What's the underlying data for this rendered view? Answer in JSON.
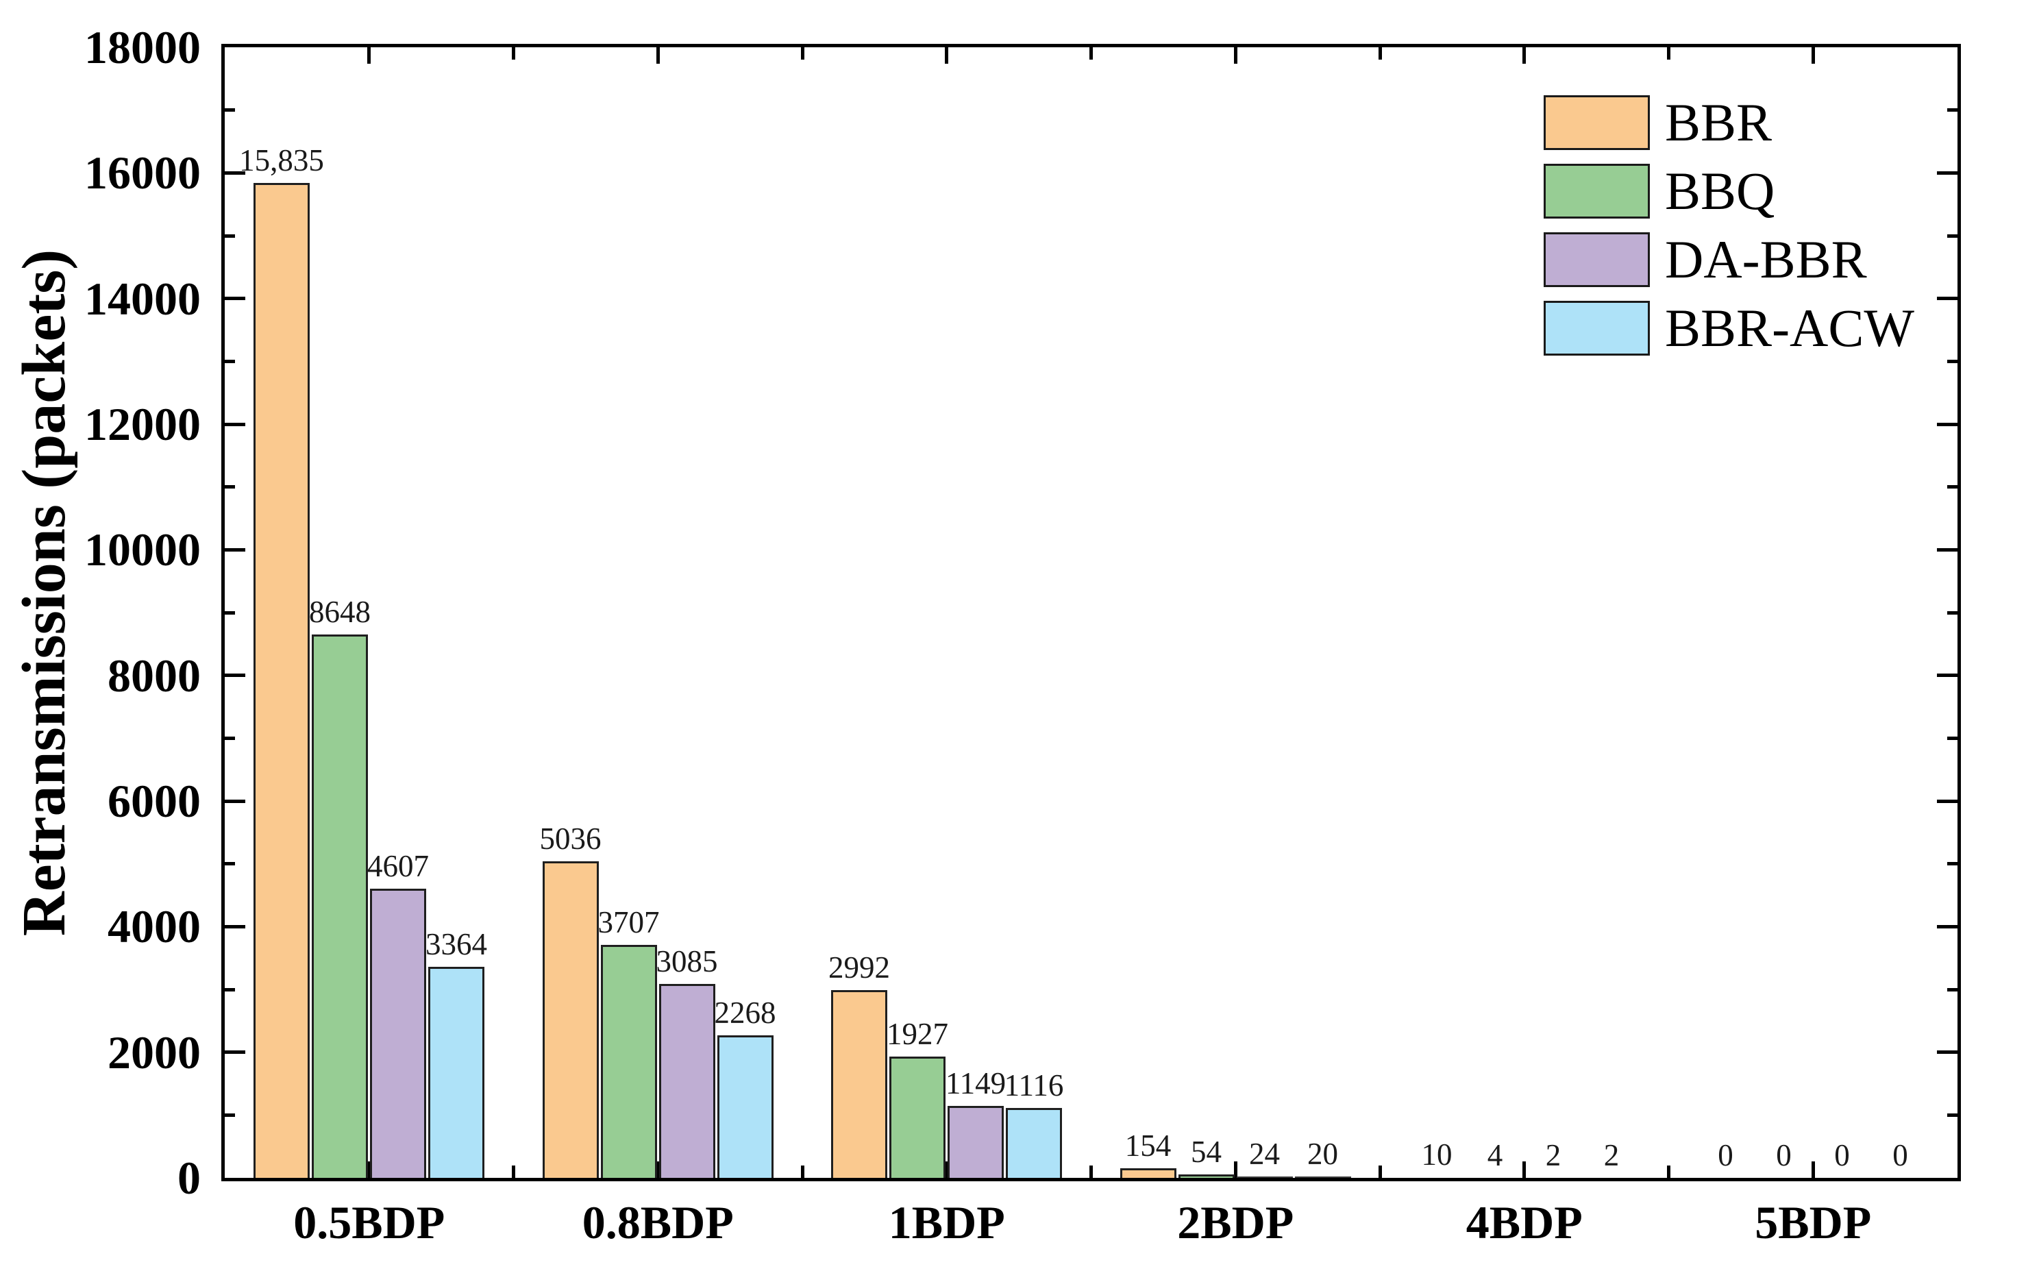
{
  "chart_data": {
    "type": "bar",
    "title": "",
    "xlabel": "",
    "ylabel": "Retransmissions (packets)",
    "ylim": [
      0,
      18000
    ],
    "y_major_tick_step": 2000,
    "y_minor_tick_step": 1000,
    "y_tick_labels": [
      "0",
      "2000",
      "4000",
      "6000",
      "8000",
      "10000",
      "12000",
      "14000",
      "16000",
      "18000"
    ],
    "categories": [
      "0.5BDP",
      "0.8BDP",
      "1BDP",
      "2BDP",
      "4BDP",
      "5BDP"
    ],
    "series": [
      {
        "name": "BBR",
        "color": "#FAC98F",
        "values": [
          15835,
          5036,
          2992,
          154,
          10,
          0
        ],
        "value_labels": [
          "15,835",
          "5036",
          "2992",
          "154",
          "10",
          "0"
        ]
      },
      {
        "name": "BBQ",
        "color": "#97CD94",
        "values": [
          8648,
          3707,
          1927,
          54,
          4,
          0
        ],
        "value_labels": [
          "8648",
          "3707",
          "1927",
          "54",
          "4",
          "0"
        ]
      },
      {
        "name": "DA-BBR",
        "color": "#BFAED3",
        "values": [
          4607,
          3085,
          1149,
          24,
          2,
          0
        ],
        "value_labels": [
          "4607",
          "3085",
          "1149",
          "24",
          "2",
          "0"
        ]
      },
      {
        "name": "BBR-ACW",
        "color": "#AEE2F8",
        "values": [
          3364,
          2268,
          1116,
          20,
          2,
          0
        ],
        "value_labels": [
          "3364",
          "2268",
          "1116",
          "20",
          "2",
          "0"
        ]
      }
    ],
    "legend_position": "top-right",
    "grid": false,
    "axis_color": "#000000",
    "bar_border_color": "#1F1F1F",
    "background_color": "#FFFFFF"
  }
}
